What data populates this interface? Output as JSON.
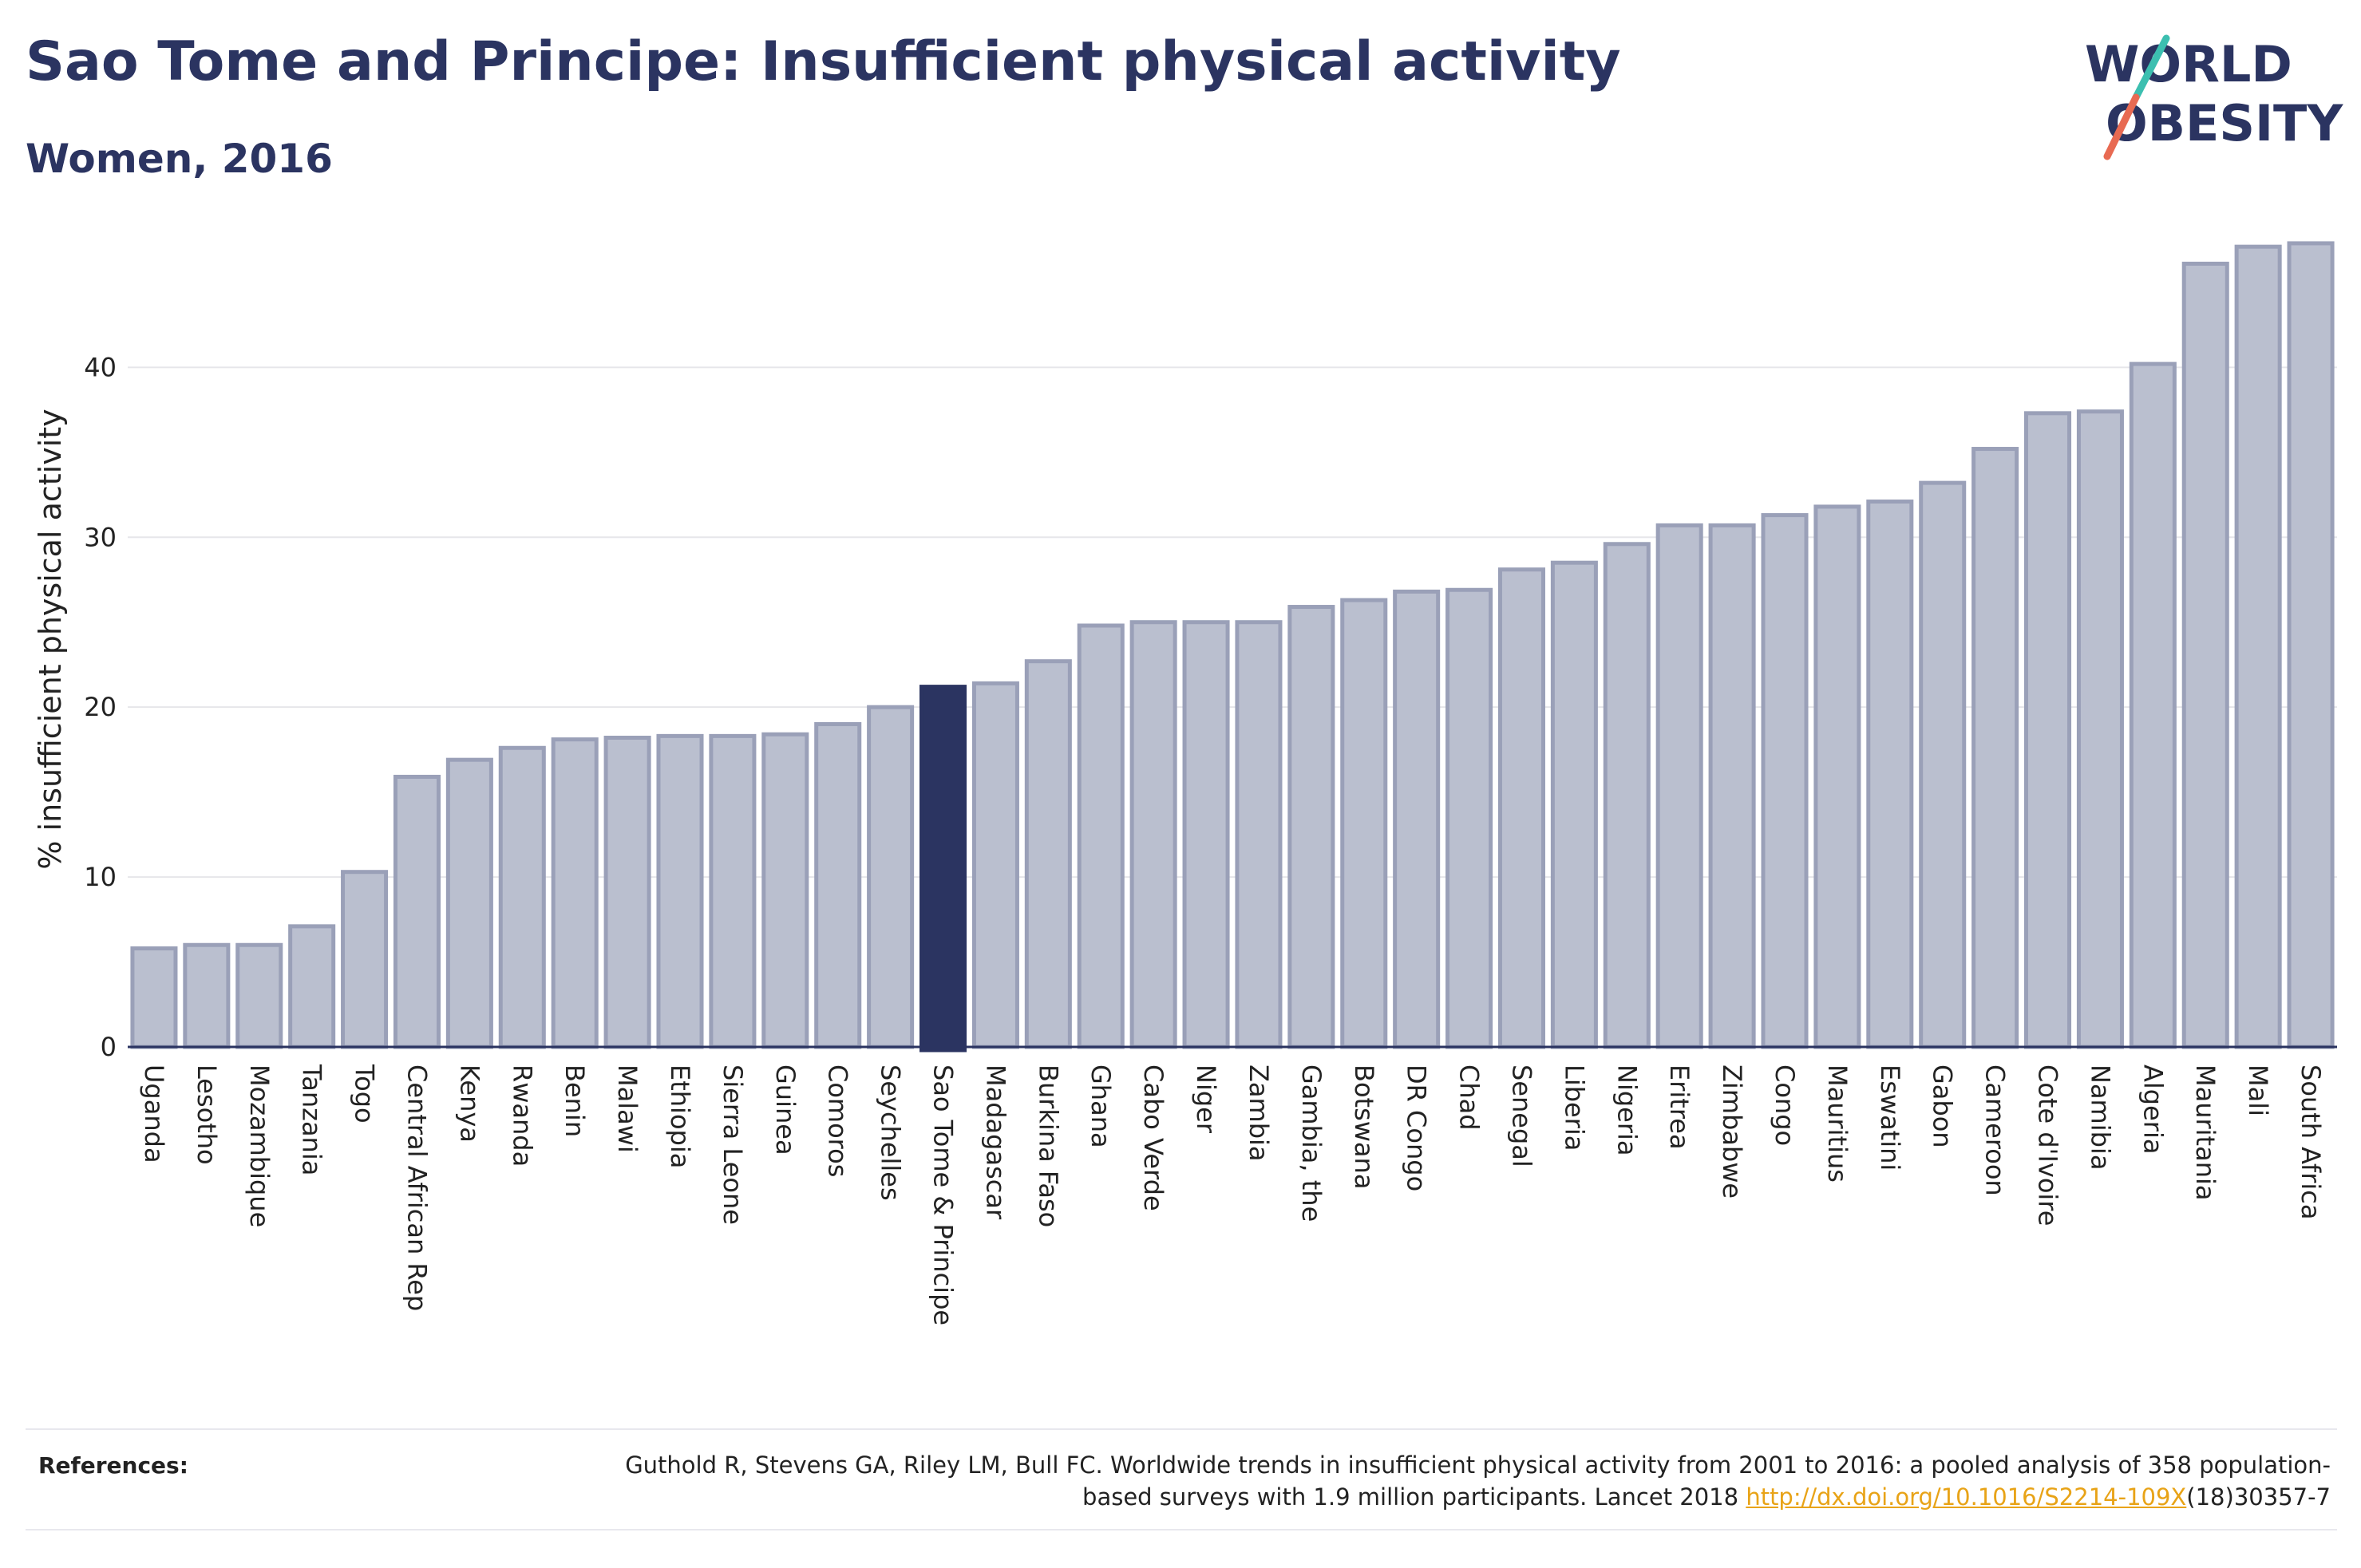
{
  "header": {
    "title": "Sao Tome and Principe: Insufficient physical activity",
    "subtitle": "Women, 2016"
  },
  "logo": {
    "line1": "WORLD",
    "line2": "OBESITY"
  },
  "chart_data": {
    "type": "bar",
    "ylabel": "% insufficient physical activity",
    "ylim": [
      0,
      48
    ],
    "yticks": [
      0,
      10,
      20,
      30,
      40
    ],
    "grid": true,
    "highlight": "Sao Tome & Principe",
    "colors": {
      "bar": "#babfcf",
      "bar_edge": "#9aa0b8",
      "highlight": "#2b3461",
      "grid": "#e6e6ea"
    },
    "categories": [
      "Uganda",
      "Lesotho",
      "Mozambique",
      "Tanzania",
      "Togo",
      "Central African Rep",
      "Kenya",
      "Rwanda",
      "Benin",
      "Malawi",
      "Ethiopia",
      "Sierra Leone",
      "Guinea",
      "Comoros",
      "Seychelles",
      "Sao Tome & Principe",
      "Madagascar",
      "Burkina Faso",
      "Ghana",
      "Cabo Verde",
      "Niger",
      "Zambia",
      "Gambia, the",
      "Botswana",
      "DR Congo",
      "Chad",
      "Senegal",
      "Liberia",
      "Nigeria",
      "Eritrea",
      "Zimbabwe",
      "Congo",
      "Mauritius",
      "Eswatini",
      "Gabon",
      "Cameroon",
      "Cote d'Ivoire",
      "Namibia",
      "Algeria",
      "Mauritania",
      "Mali",
      "South Africa"
    ],
    "values": [
      5.8,
      6.0,
      6.0,
      7.1,
      10.3,
      15.9,
      16.9,
      17.6,
      18.1,
      18.2,
      18.3,
      18.3,
      18.4,
      19.0,
      20.0,
      21.2,
      21.4,
      22.7,
      24.8,
      25.0,
      25.0,
      25.0,
      25.9,
      26.3,
      26.8,
      26.9,
      28.1,
      28.5,
      29.6,
      30.7,
      30.7,
      31.3,
      31.8,
      32.1,
      33.2,
      35.2,
      37.3,
      37.4,
      40.2,
      46.1,
      47.1,
      47.3
    ]
  },
  "references": {
    "heading": "References:",
    "text": "Guthold R, Stevens GA, Riley LM, Bull FC. Worldwide trends in insufficient physical activity from 2001 to 2016: a pooled analysis of 358 population-based surveys with 1.9 million participants. Lancet 2018 ",
    "link": "http://dx.doi.org/10.1016/S2214-109X",
    "suffix": "(18)30357-7"
  }
}
